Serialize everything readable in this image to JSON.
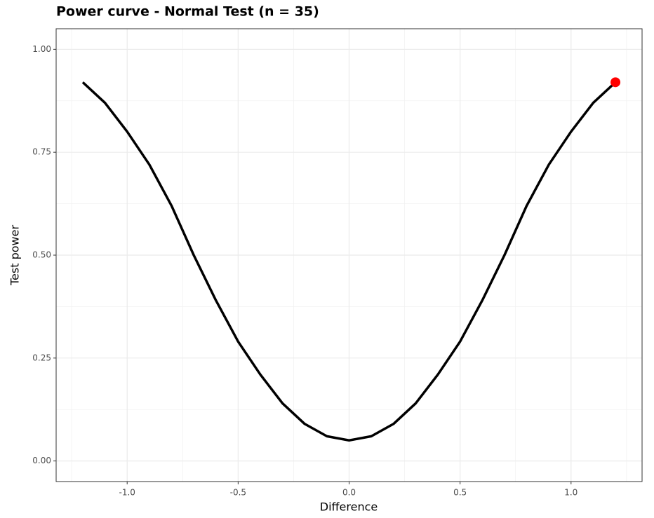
{
  "chart_data": {
    "type": "line",
    "title": "Power curve - Normal Test (n =  35)",
    "x_label": "Difference",
    "y_label": "Test power",
    "x": [
      -1.2,
      -1.1,
      -1.0,
      -0.9,
      -0.8,
      -0.7,
      -0.6,
      -0.5,
      -0.4,
      -0.3,
      -0.2,
      -0.1,
      0.0,
      0.1,
      0.2,
      0.3,
      0.4,
      0.5,
      0.6,
      0.7,
      0.8,
      0.9,
      1.0,
      1.1,
      1.2
    ],
    "series": [
      {
        "color": "#000000",
        "values": [
          0.92,
          0.87,
          0.8,
          0.72,
          0.62,
          0.5,
          0.39,
          0.29,
          0.21,
          0.14,
          0.09,
          0.06,
          0.05,
          0.06,
          0.09,
          0.14,
          0.21,
          0.29,
          0.39,
          0.5,
          0.62,
          0.72,
          0.8,
          0.87,
          0.92
        ]
      }
    ],
    "highlight_point": {
      "x": 1.2,
      "y": 0.92,
      "color": "#ff0000"
    },
    "xlim": [
      -1.32,
      1.32
    ],
    "ylim": [
      -0.05,
      1.05
    ],
    "xticks": [
      {
        "value": -1,
        "label": "-1.0"
      },
      {
        "value": -0.5,
        "label": "-0.5"
      },
      {
        "value": 0,
        "label": "0.0"
      },
      {
        "value": 0.5,
        "label": "0.5"
      },
      {
        "value": 1,
        "label": "1.0"
      }
    ],
    "yticks": [
      {
        "value": 0,
        "label": "0.00"
      },
      {
        "value": 0.25,
        "label": "0.25"
      },
      {
        "value": 0.5,
        "label": "0.50"
      },
      {
        "value": 0.75,
        "label": "0.75"
      },
      {
        "value": 1,
        "label": "1.00"
      }
    ],
    "grid": true
  }
}
